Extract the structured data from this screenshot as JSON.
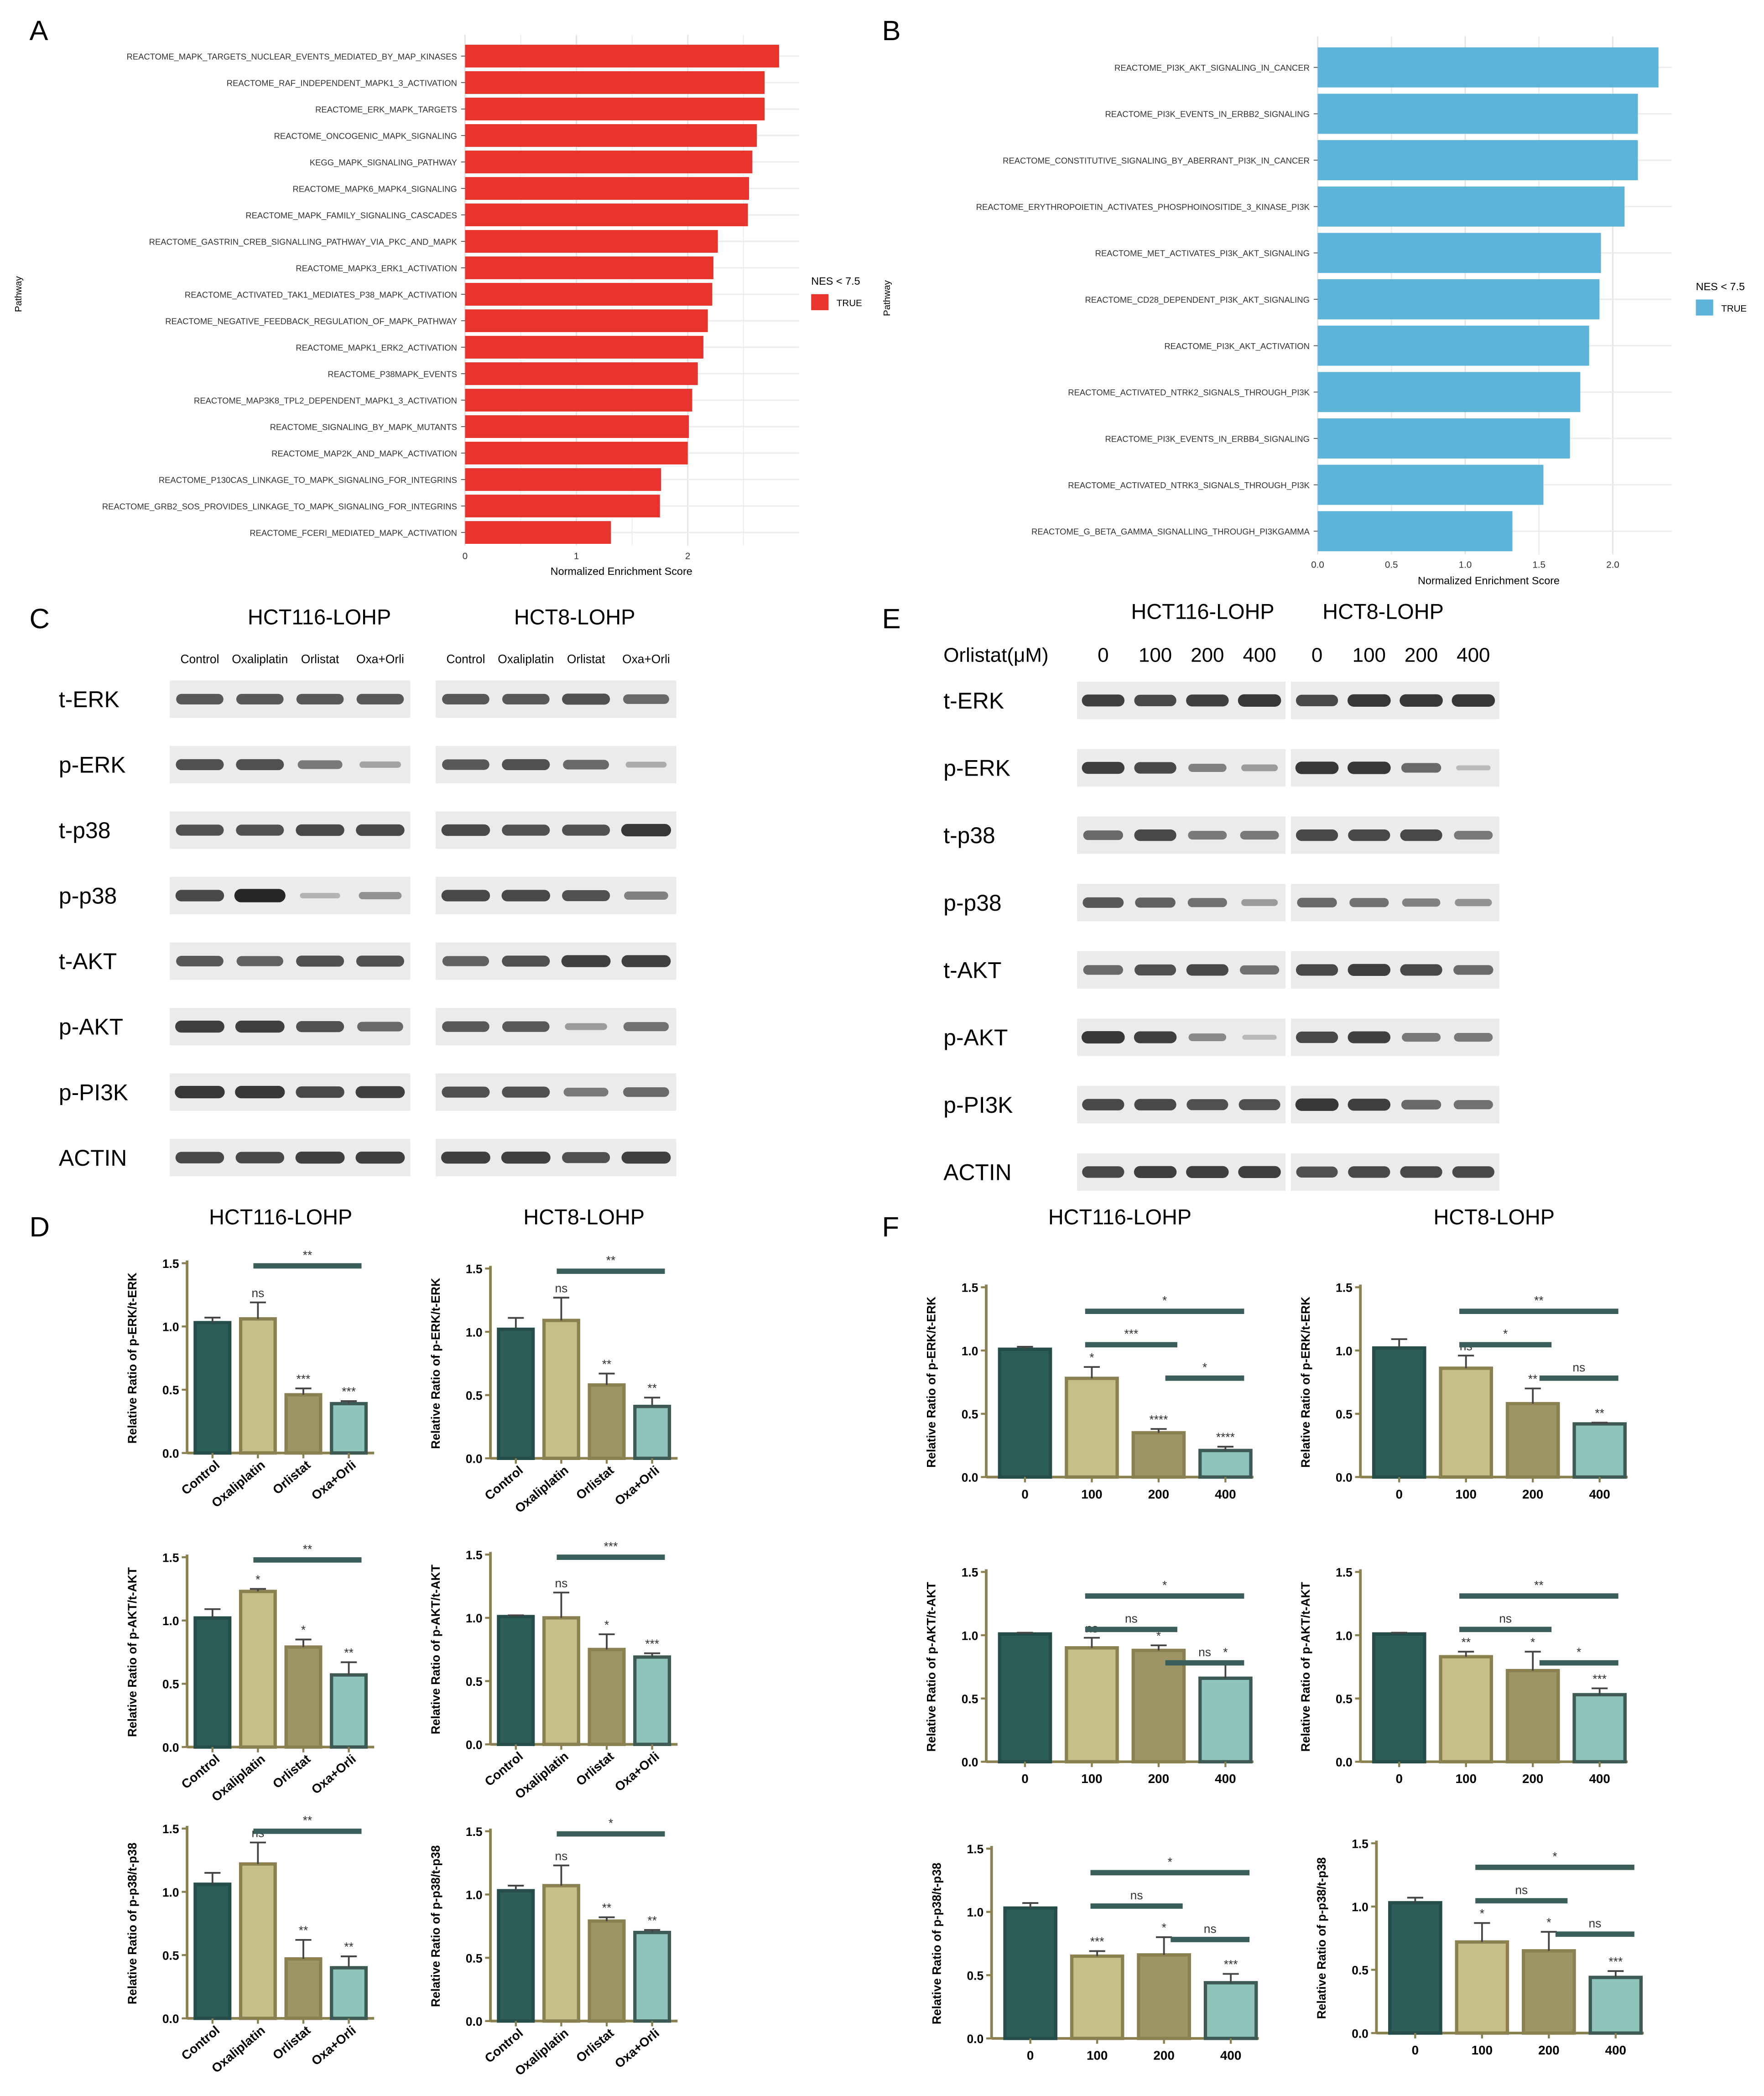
{
  "panel_labels": {
    "a": "A",
    "b": "B",
    "c": "C",
    "d": "D",
    "e": "E",
    "f": "F"
  },
  "blots": {
    "c": {
      "groups": [
        "HCT116-LOHP",
        "HCT8-LOHP"
      ],
      "lanes": [
        "Control",
        "Oxaliplatin",
        "Orlistat",
        "Oxa+Orli"
      ],
      "proteins": [
        "t-ERK",
        "p-ERK",
        "t-p38",
        "p-p38",
        "t-AKT",
        "p-AKT",
        "p-PI3K",
        "ACTIN"
      ]
    },
    "e": {
      "groups": [
        "HCT116-LOHP",
        "HCT8-LOHP"
      ],
      "dose_label": "Orlistat(μM)",
      "lanes": [
        "0",
        "100",
        "200",
        "400"
      ],
      "proteins": [
        "t-ERK",
        "p-ERK",
        "t-p38",
        "p-p38",
        "t-AKT",
        "p-AKT",
        "p-PI3K",
        "ACTIN"
      ]
    }
  },
  "colors": {
    "red_bar": "#e8342d",
    "blue_bar": "#5eb3d9",
    "dark_teal": "#2d5d59",
    "khaki": "#c8be88",
    "olive": "#9e9466",
    "mint": "#8ec4bb",
    "bar_outline": "#8b8050",
    "sig_line": "#3a5f5a"
  },
  "chart_data": [
    {
      "id": "A",
      "type": "bar",
      "orientation": "horizontal",
      "categories": [
        "REACTOME_MAPK_TARGETS_NUCLEAR_EVENTS_MEDIATED_BY_MAP_KINASES",
        "REACTOME_RAF_INDEPENDENT_MAPK1_3_ACTIVATION",
        "REACTOME_ERK_MAPK_TARGETS",
        "REACTOME_ONCOGENIC_MAPK_SIGNALING",
        "KEGG_MAPK_SIGNALING_PATHWAY",
        "REACTOME_MAPK6_MAPK4_SIGNALING",
        "REACTOME_MAPK_FAMILY_SIGNALING_CASCADES",
        "REACTOME_GASTRIN_CREB_SIGNALLING_PATHWAY_VIA_PKC_AND_MAPK",
        "REACTOME_MAPK3_ERK1_ACTIVATION",
        "REACTOME_ACTIVATED_TAK1_MEDIATES_P38_MAPK_ACTIVATION",
        "REACTOME_NEGATIVE_FEEDBACK_REGULATION_OF_MAPK_PATHWAY",
        "REACTOME_MAPK1_ERK2_ACTIVATION",
        "REACTOME_P38MAPK_EVENTS",
        "REACTOME_MAP3K8_TPL2_DEPENDENT_MAPK1_3_ACTIVATION",
        "REACTOME_SIGNALING_BY_MAPK_MUTANTS",
        "REACTOME_MAP2K_AND_MAPK_ACTIVATION",
        "REACTOME_P130CAS_LINKAGE_TO_MAPK_SIGNALING_FOR_INTEGRINS",
        "REACTOME_GRB2_SOS_PROVIDES_LINKAGE_TO_MAPK_SIGNALING_FOR_INTEGRINS",
        "REACTOME_FCERI_MEDIATED_MAPK_ACTIVATION"
      ],
      "values": [
        2.82,
        2.69,
        2.69,
        2.62,
        2.58,
        2.55,
        2.54,
        2.27,
        2.23,
        2.22,
        2.18,
        2.14,
        2.09,
        2.04,
        2.01,
        2.0,
        1.76,
        1.75,
        1.31
      ],
      "xlabel": "Normalized Enrichment Score",
      "ylabel": "Pathway",
      "xlim": [
        0,
        3
      ],
      "xticks": [
        "0",
        "1",
        "2"
      ],
      "legend_title": "NES < 7.5",
      "legend_entry": "TRUE",
      "legend_position": "right"
    },
    {
      "id": "B",
      "type": "bar",
      "orientation": "horizontal",
      "categories": [
        "REACTOME_PI3K_AKT_SIGNALING_IN_CANCER",
        "REACTOME_PI3K_EVENTS_IN_ERBB2_SIGNALING",
        "REACTOME_CONSTITUTIVE_SIGNALING_BY_ABERRANT_PI3K_IN_CANCER",
        "REACTOME_ERYTHROPOIETIN_ACTIVATES_PHOSPHOINOSITIDE_3_KINASE_PI3K",
        "REACTOME_MET_ACTIVATES_PI3K_AKT_SIGNALING",
        "REACTOME_CD28_DEPENDENT_PI3K_AKT_SIGNALING",
        "REACTOME_PI3K_AKT_ACTIVATION",
        "REACTOME_ACTIVATED_NTRK2_SIGNALS_THROUGH_PI3K",
        "REACTOME_PI3K_EVENTS_IN_ERBB4_SIGNALING",
        "REACTOME_ACTIVATED_NTRK3_SIGNALS_THROUGH_PI3K",
        "REACTOME_G_BETA_GAMMA_SIGNALLING_THROUGH_PI3KGAMMA"
      ],
      "values": [
        2.31,
        2.17,
        2.17,
        2.08,
        1.92,
        1.91,
        1.84,
        1.78,
        1.71,
        1.53,
        1.32
      ],
      "xlabel": "Normalized Enrichment Score",
      "ylabel": "Pathway",
      "xlim": [
        0,
        2.4
      ],
      "xticks": [
        "0.0",
        "0.5",
        "1.0",
        "1.5",
        "2.0"
      ],
      "legend_title": "NES < 7.5",
      "legend_entry": "TRUE",
      "legend_position": "right"
    },
    {
      "id": "D-ERK-HCT116",
      "type": "bar",
      "title": "HCT116-LOHP",
      "ylabel": "Relative Ratio of p-ERK/t-ERK",
      "categories": [
        "Control",
        "Oxaliplatin",
        "Orlistat",
        "Oxa+Orli"
      ],
      "values": [
        1.03,
        1.06,
        0.46,
        0.39
      ],
      "errors": [
        0.04,
        0.13,
        0.05,
        0.02
      ],
      "labels": [
        "",
        "ns",
        "***",
        "***"
      ],
      "sig_brackets": [
        {
          "from": 1,
          "to": 3,
          "label": "**"
        }
      ],
      "ylim": [
        0,
        1.5
      ],
      "yticks": [
        "0.0",
        "0.5",
        "1.0",
        "1.5"
      ]
    },
    {
      "id": "D-ERK-HCT8",
      "type": "bar",
      "title": "HCT8-LOHP",
      "ylabel": "Relative Ratio of p-ERK/t-ERK",
      "categories": [
        "Control",
        "Oxaliplatin",
        "Orlistat",
        "Oxa+Orli"
      ],
      "values": [
        1.02,
        1.09,
        0.58,
        0.41
      ],
      "errors": [
        0.09,
        0.18,
        0.09,
        0.07
      ],
      "labels": [
        "",
        "ns",
        "**",
        "**"
      ],
      "sig_brackets": [
        {
          "from": 1,
          "to": 3,
          "label": "**"
        }
      ],
      "ylim": [
        0,
        1.5
      ],
      "yticks": [
        "0.0",
        "0.5",
        "1.0",
        "1.5"
      ]
    },
    {
      "id": "D-AKT-HCT116",
      "type": "bar",
      "ylabel": "Relative Ratio of p-AKT/t-AKT",
      "categories": [
        "Control",
        "Oxaliplatin",
        "Orlistat",
        "Oxa+Orli"
      ],
      "values": [
        1.02,
        1.23,
        0.79,
        0.57
      ],
      "errors": [
        0.07,
        0.02,
        0.06,
        0.1
      ],
      "labels": [
        "",
        "*",
        "*",
        "**"
      ],
      "sig_brackets": [
        {
          "from": 1,
          "to": 3,
          "label": "**"
        }
      ],
      "ylim": [
        0,
        1.5
      ],
      "yticks": [
        "0.0",
        "0.5",
        "1.0",
        "1.5"
      ]
    },
    {
      "id": "D-AKT-HCT8",
      "type": "bar",
      "ylabel": "Relative Ratio of p-AKT/t-AKT",
      "categories": [
        "Control",
        "Oxaliplatin",
        "Orlistat",
        "Oxa+Orli"
      ],
      "values": [
        1.01,
        1.0,
        0.75,
        0.69
      ],
      "errors": [
        0.01,
        0.2,
        0.12,
        0.03
      ],
      "labels": [
        "",
        "ns",
        "*",
        "***"
      ],
      "sig_brackets": [
        {
          "from": 1,
          "to": 3,
          "label": "***"
        }
      ],
      "ylim": [
        0,
        1.5
      ],
      "yticks": [
        "0.0",
        "0.5",
        "1.0",
        "1.5"
      ]
    },
    {
      "id": "D-p38-HCT116",
      "type": "bar",
      "ylabel": "Relative Ratio of p-p38/t-p38",
      "categories": [
        "Control",
        "Oxaliplatin",
        "Orlistat",
        "Oxa+Orli"
      ],
      "values": [
        1.06,
        1.22,
        0.47,
        0.4
      ],
      "errors": [
        0.09,
        0.17,
        0.15,
        0.09
      ],
      "labels": [
        "",
        "ns",
        "**",
        "**"
      ],
      "sig_brackets": [
        {
          "from": 1,
          "to": 3,
          "label": "**"
        }
      ],
      "ylim": [
        0,
        1.5
      ],
      "yticks": [
        "0.0",
        "0.5",
        "1.0",
        "1.5"
      ]
    },
    {
      "id": "D-p38-HCT8",
      "type": "bar",
      "ylabel": "Relative Ratio of p-p38/t-p38",
      "categories": [
        "Control",
        "Oxaliplatin",
        "Orlistat",
        "Oxa+Orli"
      ],
      "values": [
        1.03,
        1.07,
        0.79,
        0.7
      ],
      "errors": [
        0.04,
        0.16,
        0.03,
        0.02
      ],
      "labels": [
        "",
        "ns",
        "**",
        "**"
      ],
      "sig_brackets": [
        {
          "from": 1,
          "to": 3,
          "label": "*"
        }
      ],
      "ylim": [
        0,
        1.5
      ],
      "yticks": [
        "0.0",
        "0.5",
        "1.0",
        "1.5"
      ]
    },
    {
      "id": "F-ERK-HCT116",
      "type": "bar",
      "title": "HCT116-LOHP",
      "ylabel": "Relative Ratio of p-ERK/t-ERK",
      "categories": [
        "0",
        "100",
        "200",
        "400"
      ],
      "values": [
        1.01,
        0.78,
        0.35,
        0.21
      ],
      "errors": [
        0.02,
        0.09,
        0.03,
        0.03
      ],
      "labels": [
        "",
        "*",
        "****",
        "****"
      ],
      "sig_brackets": [
        {
          "from": 1,
          "to": 3,
          "label": "*"
        },
        {
          "from": 1,
          "to": 2,
          "label": "***"
        },
        {
          "from": 2,
          "to": 3,
          "label": "*"
        }
      ],
      "ylim": [
        0,
        1.5
      ],
      "yticks": [
        "0.0",
        "0.5",
        "1.0",
        "1.5"
      ]
    },
    {
      "id": "F-ERK-HCT8",
      "type": "bar",
      "title": "HCT8-LOHP",
      "ylabel": "Relative Ratio of p-ERK/t-ERK",
      "categories": [
        "0",
        "100",
        "200",
        "400"
      ],
      "values": [
        1.02,
        0.86,
        0.58,
        0.42
      ],
      "errors": [
        0.07,
        0.1,
        0.12,
        0.01
      ],
      "labels": [
        "",
        "ns",
        "**",
        "**"
      ],
      "sig_brackets": [
        {
          "from": 1,
          "to": 3,
          "label": "**"
        },
        {
          "from": 1,
          "to": 2,
          "label": "*"
        },
        {
          "from": 2,
          "to": 3,
          "label": "ns"
        }
      ],
      "ylim": [
        0,
        1.5
      ],
      "yticks": [
        "0.0",
        "0.5",
        "1.0",
        "1.5"
      ]
    },
    {
      "id": "F-AKT-HCT116",
      "type": "bar",
      "ylabel": "Relative Ratio of p-AKT/t-AKT",
      "categories": [
        "0",
        "100",
        "200",
        "400"
      ],
      "values": [
        1.01,
        0.9,
        0.88,
        0.66
      ],
      "errors": [
        0.01,
        0.08,
        0.04,
        0.13
      ],
      "labels": [
        "",
        "ns",
        "*",
        "*"
      ],
      "sig_brackets": [
        {
          "from": 1,
          "to": 3,
          "label": "*"
        },
        {
          "from": 1,
          "to": 2,
          "label": "ns"
        },
        {
          "from": 2,
          "to": 3,
          "label": "ns"
        }
      ],
      "ylim": [
        0,
        1.5
      ],
      "yticks": [
        "0.0",
        "0.5",
        "1.0",
        "1.5"
      ]
    },
    {
      "id": "F-AKT-HCT8",
      "type": "bar",
      "ylabel": "Relative Ratio of p-AKT/t-AKT",
      "categories": [
        "0",
        "100",
        "200",
        "400"
      ],
      "values": [
        1.01,
        0.83,
        0.72,
        0.53
      ],
      "errors": [
        0.01,
        0.04,
        0.15,
        0.05
      ],
      "labels": [
        "",
        "**",
        "*",
        "***"
      ],
      "sig_brackets": [
        {
          "from": 1,
          "to": 3,
          "label": "**"
        },
        {
          "from": 1,
          "to": 2,
          "label": "ns"
        },
        {
          "from": 2,
          "to": 3,
          "label": "*"
        }
      ],
      "ylim": [
        0,
        1.5
      ],
      "yticks": [
        "0.0",
        "0.5",
        "1.0",
        "1.5"
      ]
    },
    {
      "id": "F-p38-HCT116",
      "type": "bar",
      "ylabel": "Relative Ratio of p-p38/t-p38",
      "categories": [
        "0",
        "100",
        "200",
        "400"
      ],
      "values": [
        1.03,
        0.65,
        0.66,
        0.44
      ],
      "errors": [
        0.04,
        0.04,
        0.14,
        0.07
      ],
      "labels": [
        "",
        "***",
        "*",
        "***"
      ],
      "sig_brackets": [
        {
          "from": 1,
          "to": 3,
          "label": "*"
        },
        {
          "from": 1,
          "to": 2,
          "label": "ns"
        },
        {
          "from": 2,
          "to": 3,
          "label": "ns"
        }
      ],
      "ylim": [
        0,
        1.5
      ],
      "yticks": [
        "0.0",
        "0.5",
        "1.0",
        "1.5"
      ]
    },
    {
      "id": "F-p38-HCT8",
      "type": "bar",
      "ylabel": "Relative Ratio of p-p38/t-p38",
      "categories": [
        "0",
        "100",
        "200",
        "400"
      ],
      "values": [
        1.03,
        0.72,
        0.65,
        0.44
      ],
      "errors": [
        0.04,
        0.15,
        0.15,
        0.05
      ],
      "labels": [
        "",
        "*",
        "*",
        "***"
      ],
      "sig_brackets": [
        {
          "from": 1,
          "to": 3,
          "label": "*"
        },
        {
          "from": 1,
          "to": 2,
          "label": "ns"
        },
        {
          "from": 2,
          "to": 3,
          "label": "ns"
        }
      ],
      "ylim": [
        0,
        1.5
      ],
      "yticks": [
        "0.0",
        "0.5",
        "1.0",
        "1.5"
      ]
    }
  ]
}
